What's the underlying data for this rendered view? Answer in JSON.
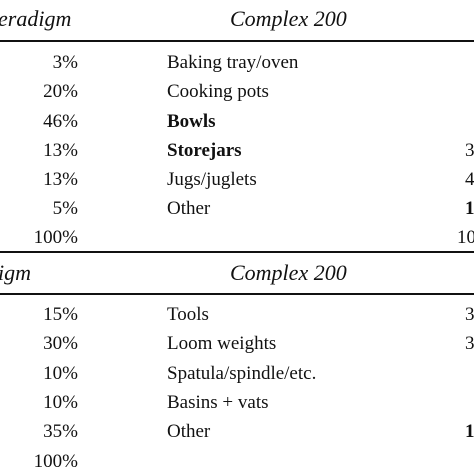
{
  "table1": {
    "header_left": "eradigm",
    "header_right": "Complex 200",
    "rows": [
      {
        "percent": "3%",
        "label": "Baking tray/oven",
        "right": ""
      },
      {
        "percent": "20%",
        "label": "Cooking pots",
        "right": ""
      },
      {
        "percent": "46%",
        "label": "Bowls",
        "right": ""
      },
      {
        "percent": "13%",
        "label": "Storejars",
        "right": "3"
      },
      {
        "percent": "13%",
        "label": "Jugs/juglets",
        "right": "4"
      },
      {
        "percent": "5%",
        "label": "Other",
        "right": "1"
      }
    ],
    "total_percent": "100%",
    "total_right": "10"
  },
  "table2": {
    "header_left": "igm",
    "header_right": "Complex 200",
    "rows": [
      {
        "percent": "15%",
        "label": "Tools",
        "right": "3"
      },
      {
        "percent": "30%",
        "label": "Loom weights",
        "right": "3"
      },
      {
        "percent": "10%",
        "label": "Spatula/spindle/etc.",
        "right": ""
      },
      {
        "percent": "10%",
        "label": "Basins + vats",
        "right": ""
      },
      {
        "percent": "35%",
        "label": "Other",
        "right": "1"
      }
    ],
    "total_percent": "100%"
  }
}
